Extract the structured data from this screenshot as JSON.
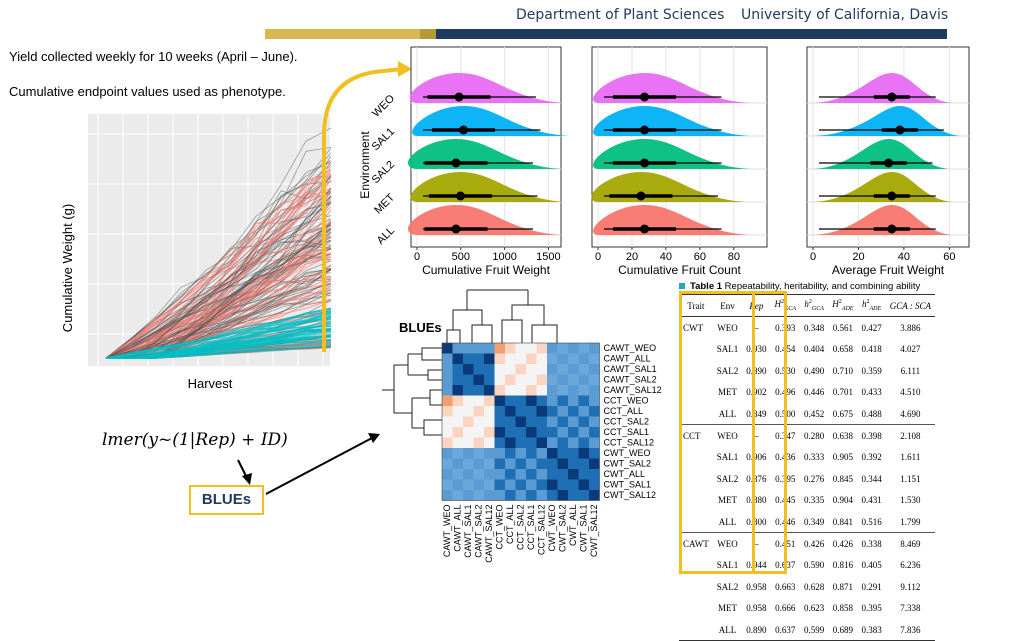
{
  "header": {
    "dept": "Department of Plant Sciences",
    "university": "University of California, Davis"
  },
  "notes": {
    "line1": "Yield collected weekly for 10 weeks (April – June).",
    "line2": "Cumulative endpoint values used as phenotype."
  },
  "growth_plot": {
    "xlabel": "Harvest",
    "ylabel": "Cumulative Weight (g)",
    "colors": {
      "other": "#555555",
      "highlight": "#f8766d",
      "lowest": "#00bfc4"
    }
  },
  "ridge_panels": {
    "ylabel": "Environment",
    "environments": [
      "ALL",
      "MET",
      "SAL2",
      "SAL1",
      "WEO"
    ],
    "colors": [
      "#f8766d",
      "#a3a500",
      "#00bf7d",
      "#00b0f6",
      "#e76bf3"
    ],
    "panels": [
      {
        "xlabel": "Cumulative Fruit Weight",
        "ticks": [
          "0",
          "500",
          "1000",
          "1500"
        ]
      },
      {
        "xlabel": "Cumulative Fruit Count",
        "ticks": [
          "0",
          "20",
          "40",
          "60",
          "80"
        ]
      },
      {
        "xlabel": "Average Fruit Weight",
        "ticks": [
          "0",
          "20",
          "40",
          "60"
        ]
      }
    ]
  },
  "heatmap": {
    "title": "BLUEs",
    "row_labels": [
      "CAWT_WEO",
      "CAWT_ALL",
      "CAWT_SAL1",
      "CAWT_SAL2",
      "CAWT_SAL12",
      "CCT_WEO",
      "CCT_ALL",
      "CCT_SAL2",
      "CCT_SAL1",
      "CCT_SAL12",
      "CWT_WEO",
      "CWT_SAL2",
      "CWT_ALL",
      "CWT_SAL1",
      "CWT_SAL12"
    ],
    "col_labels": [
      "CAWT_WEO",
      "CAWT_ALL",
      "CAWT_SAL1",
      "CAWT_SAL2",
      "CAWT_SAL12",
      "CCT_WEO",
      "CCT_ALL",
      "CCT_SAL2",
      "CCT_SAL1",
      "CCT_SAL12",
      "CWT_WEO",
      "CWT_SAL2",
      "CWT_ALL",
      "CWT_SAL1",
      "CWT_SAL12"
    ]
  },
  "model": {
    "formula": "lmer(y~(1|Rep) + ID)",
    "blues_label": "BLUEs"
  },
  "table": {
    "title_bold": "Table 1",
    "title_rest": " Repeatability, heritability, and combining ability",
    "headers": [
      "Trait",
      "Env",
      "Rep",
      "H²GCA",
      "h²GCA",
      "H²ADE",
      "h²ADE",
      "GCA : SCA"
    ],
    "rows": [
      [
        "CWT",
        "WEO",
        "–",
        "0.393",
        "0.348",
        "0.561",
        "0.427",
        "3.886"
      ],
      [
        "",
        "SAL1",
        "0.930",
        "0.454",
        "0.404",
        "0.658",
        "0.418",
        "4.027"
      ],
      [
        "",
        "SAL2",
        "0.890",
        "0.530",
        "0.490",
        "0.710",
        "0.359",
        "6.111"
      ],
      [
        "",
        "MET",
        "0.902",
        "0.496",
        "0.446",
        "0.701",
        "0.433",
        "4.510"
      ],
      [
        "",
        "ALL",
        "0.849",
        "0.500",
        "0.452",
        "0.675",
        "0.488",
        "4.690"
      ],
      [
        "CCT",
        "WEO",
        "–",
        "0.347",
        "0.280",
        "0.638",
        "0.398",
        "2.108"
      ],
      [
        "",
        "SAL1",
        "0.906",
        "0.436",
        "0.333",
        "0.905",
        "0.392",
        "1.611"
      ],
      [
        "",
        "SAL2",
        "0.876",
        "0.395",
        "0.276",
        "0.845",
        "0.344",
        "1.151"
      ],
      [
        "",
        "MET",
        "0.880",
        "0.445",
        "0.335",
        "0.904",
        "0.431",
        "1.530"
      ],
      [
        "",
        "ALL",
        "0.800",
        "0.446",
        "0.349",
        "0.841",
        "0.516",
        "1.799"
      ],
      [
        "CAWT",
        "WEO",
        "–",
        "0.451",
        "0.426",
        "0.426",
        "0.338",
        "8.469"
      ],
      [
        "",
        "SAL1",
        "0.944",
        "0.637",
        "0.590",
        "0.816",
        "0.405",
        "6.236"
      ],
      [
        "",
        "SAL2",
        "0.958",
        "0.663",
        "0.628",
        "0.871",
        "0.291",
        "9.112"
      ],
      [
        "",
        "MET",
        "0.958",
        "0.666",
        "0.623",
        "0.858",
        "0.395",
        "7.338"
      ],
      [
        "",
        "ALL",
        "0.890",
        "0.637",
        "0.599",
        "0.689",
        "0.383",
        "7.836"
      ]
    ]
  }
}
